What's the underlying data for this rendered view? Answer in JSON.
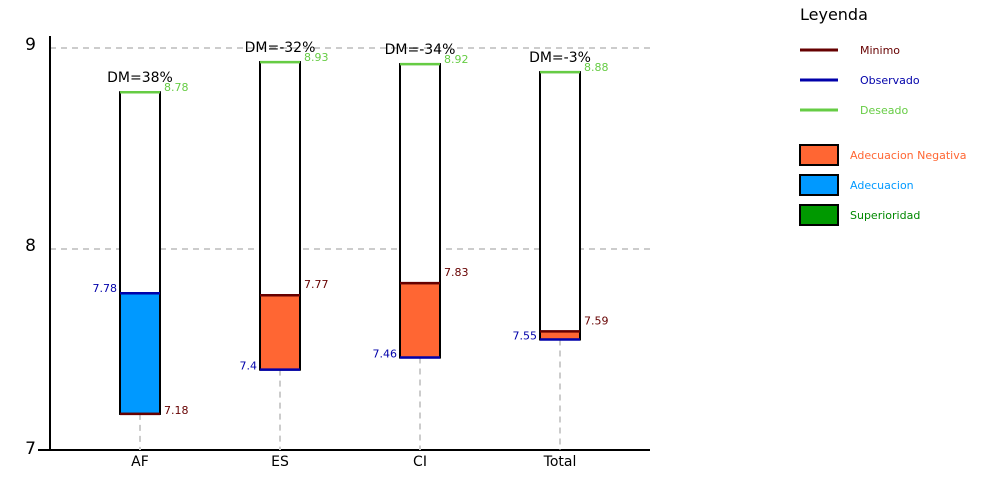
{
  "chart_data": {
    "type": "bar",
    "categories": [
      "AF",
      "ES",
      "CI",
      "Total"
    ],
    "ylim": [
      7,
      9
    ],
    "yticks": [
      "7",
      "8",
      "9"
    ],
    "grid": true,
    "legend_position": "right",
    "series": [
      {
        "name": "Minimo",
        "values": [
          7.18,
          7.77,
          7.83,
          7.59
        ]
      },
      {
        "name": "Observado",
        "values": [
          7.78,
          7.4,
          7.46,
          7.55
        ]
      },
      {
        "name": "Deseado",
        "values": [
          8.78,
          8.93,
          8.92,
          8.88
        ]
      }
    ],
    "min_labels": [
      "7.18",
      "7.77",
      "7.83",
      "7.59"
    ],
    "obs_labels": [
      "7.78",
      "7.4",
      "7.46",
      "7.55"
    ],
    "des_labels": [
      "8.78",
      "8.93",
      "8.92",
      "8.88"
    ],
    "dm_labels": [
      "DM=38%",
      "DM=-32%",
      "DM=-34%",
      "DM=-3%"
    ],
    "status": [
      "adecuacion",
      "negativa",
      "negativa",
      "negativa"
    ]
  },
  "legend": {
    "title": "Leyenda",
    "lines": [
      {
        "label": "Minimo",
        "color": "#660000"
      },
      {
        "label": "Observado",
        "color": "#0000aa"
      },
      {
        "label": "Deseado",
        "color": "#66cc44"
      }
    ],
    "boxes": [
      {
        "label": "Adecuacion Negativa",
        "color": "#ff6633",
        "text_color": "#ff6633"
      },
      {
        "label": "Adecuacion",
        "color": "#0099ff",
        "text_color": "#0099ff"
      },
      {
        "label": "Superioridad",
        "color": "#009900",
        "text_color": "#008800"
      }
    ]
  },
  "colors": {
    "minimo": "#660000",
    "observado": "#0000aa",
    "deseado": "#66cc44",
    "negativa": "#ff6633",
    "adecuacion": "#0099ff",
    "superioridad": "#009900",
    "grid": "#cccccc"
  }
}
